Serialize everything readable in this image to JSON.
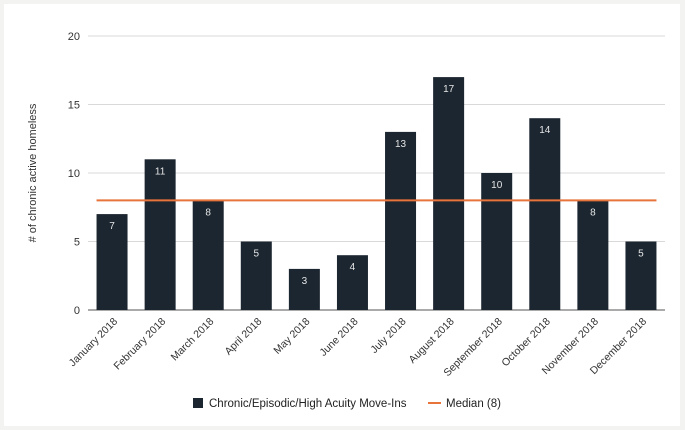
{
  "chart_data": {
    "type": "bar",
    "categories": [
      "January 2018",
      "February 2018",
      "March 2018",
      "April 2018",
      "May 2018",
      "June 2018",
      "July 2018",
      "August 2018",
      "September 2018",
      "October 2018",
      "November 2018",
      "December 2018"
    ],
    "series": [
      {
        "name": "Chronic/Episodic/High Acuity Move-Ins",
        "values": [
          7,
          11,
          8,
          5,
          3,
          4,
          13,
          17,
          10,
          14,
          8,
          5
        ],
        "color": "#1c2630"
      },
      {
        "name": "Median (8)",
        "type": "line",
        "value": 8,
        "color": "#e8743b"
      }
    ],
    "ylabel": "# of chronic active homeless",
    "xlabel": "",
    "ylim": [
      0,
      20
    ],
    "yticks": [
      "0",
      "5",
      "10",
      "15",
      "20"
    ],
    "grid": true,
    "legend": "bottom"
  }
}
